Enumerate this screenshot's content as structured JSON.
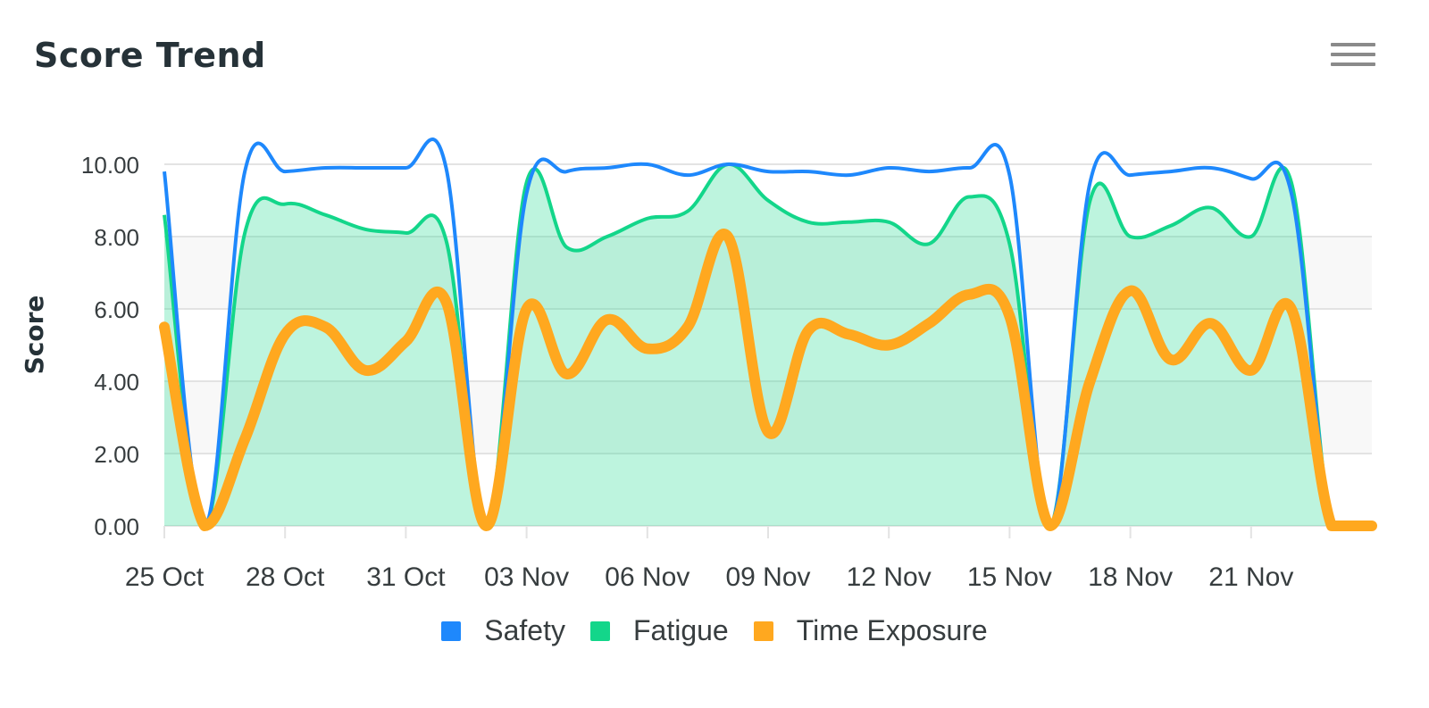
{
  "header": {
    "title": "Score Trend",
    "menu_icon": "hamburger-menu-icon"
  },
  "colors": {
    "safety": "#1E88FC",
    "fatigue": "#13D68A",
    "time_exposure": "#FFA81F",
    "fatigue_fill": "#BDF6E3",
    "band": "#F8F8F8",
    "grid": "#E3E3E3"
  },
  "legend": [
    {
      "label": "Safety",
      "color": "#1E88FC"
    },
    {
      "label": "Fatigue",
      "color": "#13D68A"
    },
    {
      "label": "Time Exposure",
      "color": "#FFA81F"
    }
  ],
  "chart_data": {
    "type": "line",
    "title": "Score Trend",
    "xlabel": "",
    "ylabel": "Score",
    "ylim": [
      0,
      10
    ],
    "yticks": [
      "0.00",
      "2.00",
      "4.00",
      "6.00",
      "8.00",
      "10.00"
    ],
    "xtick_labels": [
      "25 Oct",
      "28 Oct",
      "31 Oct",
      "03 Nov",
      "06 Nov",
      "09 Nov",
      "12 Nov",
      "15 Nov",
      "18 Nov",
      "21 Nov"
    ],
    "grid": true,
    "legend_position": "bottom",
    "x": [
      "25 Oct",
      "26 Oct",
      "27 Oct",
      "28 Oct",
      "29 Oct",
      "30 Oct",
      "31 Oct",
      "01 Nov",
      "02 Nov",
      "03 Nov",
      "04 Nov",
      "05 Nov",
      "06 Nov",
      "07 Nov",
      "08 Nov",
      "09 Nov",
      "10 Nov",
      "11 Nov",
      "12 Nov",
      "13 Nov",
      "14 Nov",
      "15 Nov",
      "16 Nov",
      "17 Nov",
      "18 Nov",
      "19 Nov",
      "20 Nov",
      "21 Nov",
      "22 Nov",
      "23 Nov",
      "24 Nov"
    ],
    "series": [
      {
        "name": "Safety",
        "style": "line",
        "values": [
          9.8,
          0,
          9.8,
          9.8,
          9.9,
          9.9,
          9.9,
          9.9,
          0,
          9.2,
          9.8,
          9.9,
          10.0,
          9.7,
          10.0,
          9.8,
          9.8,
          9.7,
          9.9,
          9.8,
          9.9,
          9.7,
          0,
          9.5,
          9.7,
          9.8,
          9.9,
          9.6,
          9.2,
          0,
          0
        ]
      },
      {
        "name": "Fatigue",
        "style": "area",
        "values": [
          8.6,
          0,
          8.1,
          8.9,
          8.6,
          8.2,
          8.1,
          7.9,
          0,
          9.5,
          7.7,
          8.0,
          8.5,
          8.7,
          10.0,
          9.0,
          8.4,
          8.4,
          8.4,
          7.8,
          9.1,
          7.8,
          0,
          9.0,
          8.0,
          8.3,
          8.8,
          8.0,
          9.5,
          0,
          0
        ]
      },
      {
        "name": "Time Exposure",
        "style": "thick-line",
        "values": [
          5.5,
          0,
          2.4,
          5.3,
          5.5,
          4.3,
          5.1,
          6.2,
          0,
          6.0,
          4.2,
          5.7,
          4.9,
          5.5,
          8.0,
          2.6,
          5.4,
          5.3,
          5.0,
          5.6,
          6.4,
          5.8,
          0,
          4.0,
          6.5,
          4.6,
          5.6,
          4.3,
          6.0,
          0,
          0
        ]
      }
    ]
  }
}
